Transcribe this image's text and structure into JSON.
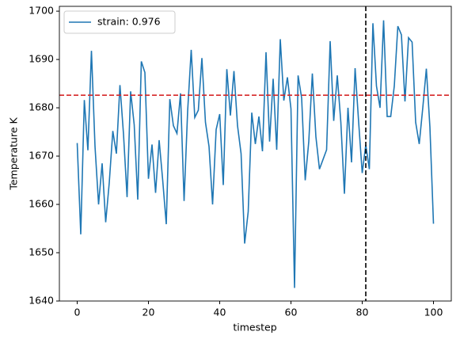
{
  "chart_data": {
    "type": "line",
    "xlabel": "timestep",
    "ylabel": "Temperature K",
    "x": [
      0,
      1,
      2,
      3,
      4,
      5,
      6,
      7,
      8,
      9,
      10,
      11,
      12,
      13,
      14,
      15,
      16,
      17,
      18,
      19,
      20,
      21,
      22,
      23,
      24,
      25,
      26,
      27,
      28,
      29,
      30,
      31,
      32,
      33,
      34,
      35,
      36,
      37,
      38,
      39,
      40,
      41,
      42,
      43,
      44,
      45,
      46,
      47,
      48,
      49,
      50,
      51,
      52,
      53,
      54,
      55,
      56,
      57,
      58,
      59,
      60,
      61,
      62,
      63,
      64,
      65,
      66,
      67,
      68,
      69,
      70,
      71,
      72,
      73,
      74,
      75,
      76,
      77,
      78,
      79,
      80,
      81,
      82,
      83,
      84,
      85,
      86,
      87,
      88,
      89,
      90,
      91,
      92,
      93,
      94,
      95,
      96,
      97,
      98,
      99,
      100
    ],
    "series": [
      {
        "name": "strain: 0.976",
        "color": "#1f77b4",
        "values": [
          1672.7,
          1653.8,
          1681.6,
          1671.2,
          1691.8,
          1672,
          1660,
          1668.5,
          1656.3,
          1664.5,
          1675.2,
          1670.5,
          1684.7,
          1674.5,
          1661.5,
          1683.4,
          1676.5,
          1661,
          1689.6,
          1687.3,
          1665.3,
          1672.4,
          1662.4,
          1673.3,
          1665,
          1655.9,
          1681.8,
          1676.3,
          1674.7,
          1683,
          1660.7,
          1679.3,
          1692,
          1678,
          1679.5,
          1690.3,
          1677,
          1672,
          1660,
          1675.5,
          1678.7,
          1664,
          1688,
          1678.4,
          1687.6,
          1676.3,
          1670.5,
          1651.9,
          1658.5,
          1679,
          1672.5,
          1678.2,
          1671,
          1691.5,
          1673,
          1686,
          1671.3,
          1694.2,
          1681.5,
          1686.3,
          1679.8,
          1642.7,
          1686.7,
          1682,
          1665,
          1673,
          1687.1,
          1674,
          1667.3,
          1669.3,
          1671.3,
          1693.8,
          1677.3,
          1686.7,
          1677,
          1662.2,
          1680,
          1668.7,
          1688.2,
          1677,
          1666.5,
          1672.3,
          1667.3,
          1697.5,
          1684.5,
          1680,
          1698.1,
          1678.2,
          1678.2,
          1684.5,
          1696.9,
          1695.1,
          1681.3,
          1694.5,
          1693.6,
          1677,
          1672.5,
          1680,
          1688.1,
          1676,
          1656
        ]
      }
    ],
    "hline": {
      "value": 1682.6,
      "color": "#d62728"
    },
    "vline": {
      "value": 81,
      "color": "#000000"
    },
    "xlim": [
      -5,
      105
    ],
    "xticks": [
      0,
      20,
      40,
      60,
      80,
      100
    ],
    "ylim": [
      1640,
      1701
    ],
    "yticks": [
      1640,
      1650,
      1660,
      1670,
      1680,
      1690,
      1700
    ],
    "legend": "upper left"
  }
}
